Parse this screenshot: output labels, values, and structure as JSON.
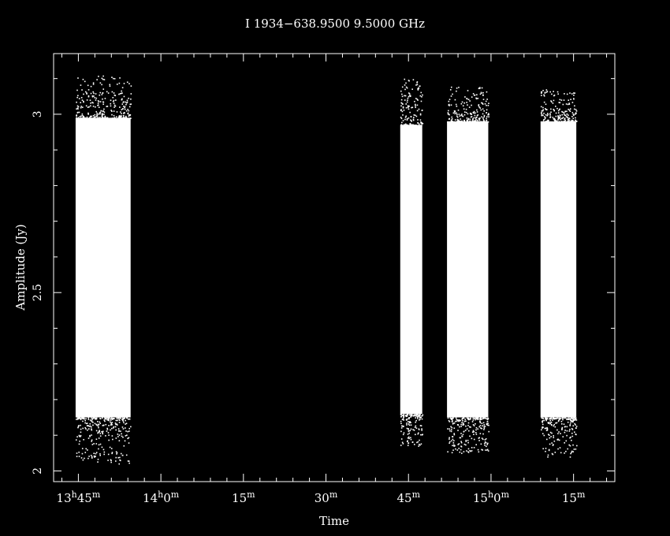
{
  "chart_data": {
    "type": "scatter",
    "title": "I 1934−638.9500  9.5000 GHz",
    "xlabel": "Time",
    "ylabel": "Amplitude (Jy)",
    "xlim_minutes": [
      13.5,
      115.5
    ],
    "ylim": [
      1.97,
      3.17
    ],
    "y_ticks": [
      {
        "value": 2.0,
        "label": "2"
      },
      {
        "value": 2.5,
        "label": "2.5"
      },
      {
        "value": 3.0,
        "label": "3"
      }
    ],
    "x_ticks": [
      {
        "minutes": 18,
        "main": "13",
        "sup1": "h",
        "mid": "45",
        "sup2": "m"
      },
      {
        "minutes": 33,
        "main": "14",
        "sup1": "h",
        "mid": "0",
        "sup2": "m"
      },
      {
        "minutes": 48,
        "main": "15",
        "sup2": "m"
      },
      {
        "minutes": 63,
        "main": "30",
        "sup2": "m"
      },
      {
        "minutes": 78,
        "main": "45",
        "sup2": "m"
      },
      {
        "minutes": 93,
        "main": "15",
        "sup1": "h",
        "mid": "0",
        "sup2": "m"
      },
      {
        "minutes": 108,
        "main": "15",
        "sup2": "m"
      }
    ],
    "scans": [
      {
        "start_minutes": 17.5,
        "end_minutes": 27.5,
        "core_low": 2.15,
        "core_high": 2.99,
        "scatter_low": 2.02,
        "scatter_high": 3.11
      },
      {
        "start_minutes": 76.5,
        "end_minutes": 80.5,
        "core_low": 2.16,
        "core_high": 2.97,
        "scatter_low": 2.07,
        "scatter_high": 3.1
      },
      {
        "start_minutes": 85.0,
        "end_minutes": 92.5,
        "core_low": 2.15,
        "core_high": 2.98,
        "scatter_low": 2.05,
        "scatter_high": 3.08
      },
      {
        "start_minutes": 102.0,
        "end_minutes": 108.5,
        "core_low": 2.15,
        "core_high": 2.98,
        "scatter_low": 2.04,
        "scatter_high": 3.07
      }
    ],
    "grid": false,
    "colors": {
      "background": "#000000",
      "foreground": "#ffffff"
    }
  }
}
